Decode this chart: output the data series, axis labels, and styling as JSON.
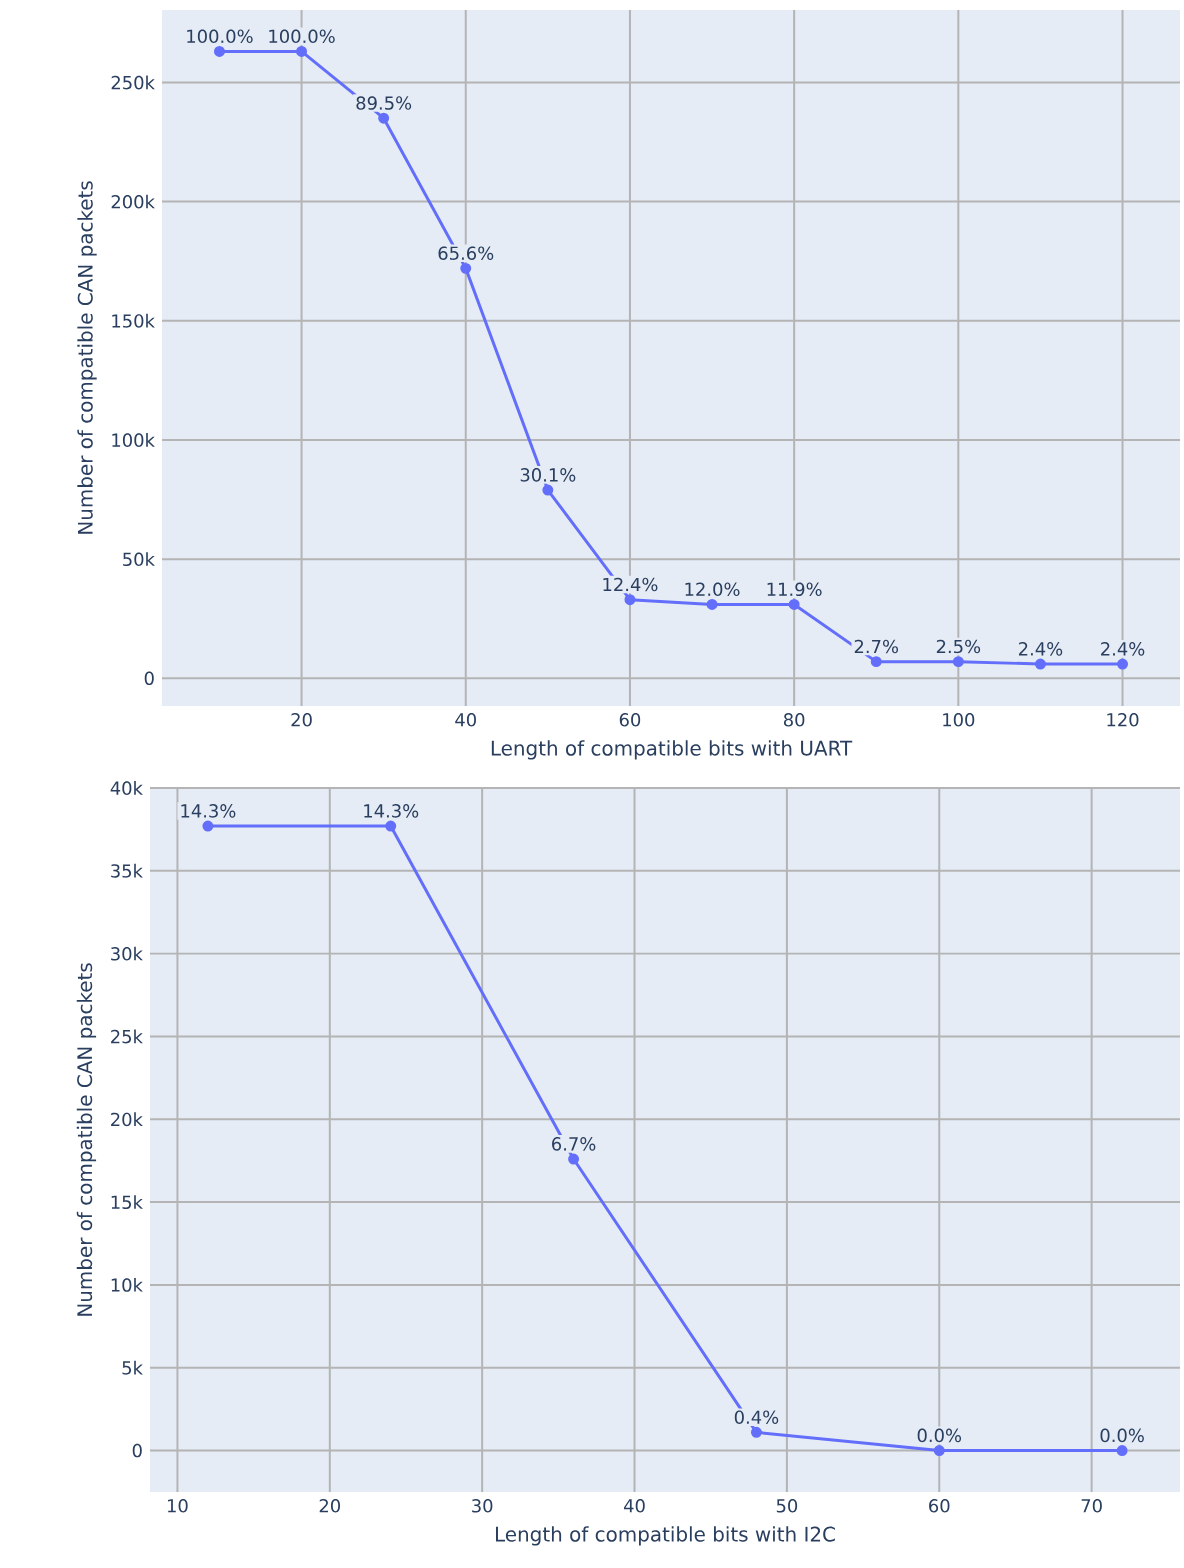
{
  "chart_data": [
    {
      "type": "line",
      "xlabel": "Length of compatible bits with UART",
      "ylabel": "Number of compatible CAN packets",
      "color": "#636efa",
      "marker": "circle",
      "grid": true,
      "x": [
        10,
        20,
        30,
        40,
        50,
        60,
        70,
        80,
        90,
        100,
        110,
        120
      ],
      "values": [
        263000,
        263000,
        235000,
        172000,
        79000,
        33000,
        31000,
        31000,
        7000,
        7000,
        6000,
        6000
      ],
      "annotations": [
        {
          "text": "100.0%",
          "x": 10,
          "y": 263000
        },
        {
          "text": "100.0%",
          "x": 20,
          "y": 263000
        },
        {
          "text": "89.5%",
          "x": 30,
          "y": 235000
        },
        {
          "text": "65.6%",
          "x": 40,
          "y": 172000
        },
        {
          "text": "30.1%",
          "x": 50,
          "y": 79000
        },
        {
          "text": "12.4%",
          "x": 60,
          "y": 33000
        },
        {
          "text": "12.0%",
          "x": 70,
          "y": 31000
        },
        {
          "text": "11.9%",
          "x": 80,
          "y": 31000
        },
        {
          "text": "2.7%",
          "x": 90,
          "y": 7000
        },
        {
          "text": "2.5%",
          "x": 100,
          "y": 7000
        },
        {
          "text": "2.4%",
          "x": 110,
          "y": 6000
        },
        {
          "text": "2.4%",
          "x": 120,
          "y": 6000
        }
      ],
      "xlim": [
        3,
        127
      ],
      "ylim": [
        -11600,
        280400
      ],
      "xticks": [
        20,
        40,
        60,
        80,
        100,
        120
      ],
      "yticks": [
        0,
        {
          "value": 50000,
          "label": "50k"
        },
        {
          "value": 100000,
          "label": "100k"
        },
        {
          "value": 150000,
          "label": "150k"
        },
        {
          "value": 200000,
          "label": "200k"
        },
        {
          "value": 250000,
          "label": "250k"
        }
      ]
    },
    {
      "type": "line",
      "xlabel": "Length of compatible bits with I2C",
      "ylabel": "Number of compatible CAN packets",
      "color": "#636efa",
      "marker": "circle",
      "grid": true,
      "x": [
        12,
        24,
        36,
        48,
        60,
        72
      ],
      "values": [
        37700,
        37700,
        17600,
        1100,
        0,
        0
      ],
      "annotations": [
        {
          "text": "14.3%",
          "x": 12,
          "y": 37700
        },
        {
          "text": "14.3%",
          "x": 24,
          "y": 37700
        },
        {
          "text": "6.7%",
          "x": 36,
          "y": 17600
        },
        {
          "text": "0.4%",
          "x": 48,
          "y": 1100
        },
        {
          "text": "0.0%",
          "x": 60,
          "y": 0
        },
        {
          "text": "0.0%",
          "x": 72,
          "y": 0
        }
      ],
      "xlim": [
        8.2,
        75.8
      ],
      "ylim": [
        -2500,
        40000
      ],
      "xticks": [
        10,
        20,
        30,
        40,
        50,
        60,
        70
      ],
      "yticks": [
        0,
        {
          "value": 5000,
          "label": "5k"
        },
        {
          "value": 10000,
          "label": "10k"
        },
        {
          "value": 15000,
          "label": "15k"
        },
        {
          "value": 20000,
          "label": "20k"
        },
        {
          "value": 25000,
          "label": "25k"
        },
        {
          "value": 30000,
          "label": "30k"
        },
        {
          "value": 35000,
          "label": "35k"
        },
        {
          "value": 40000,
          "label": "40k"
        }
      ]
    }
  ]
}
